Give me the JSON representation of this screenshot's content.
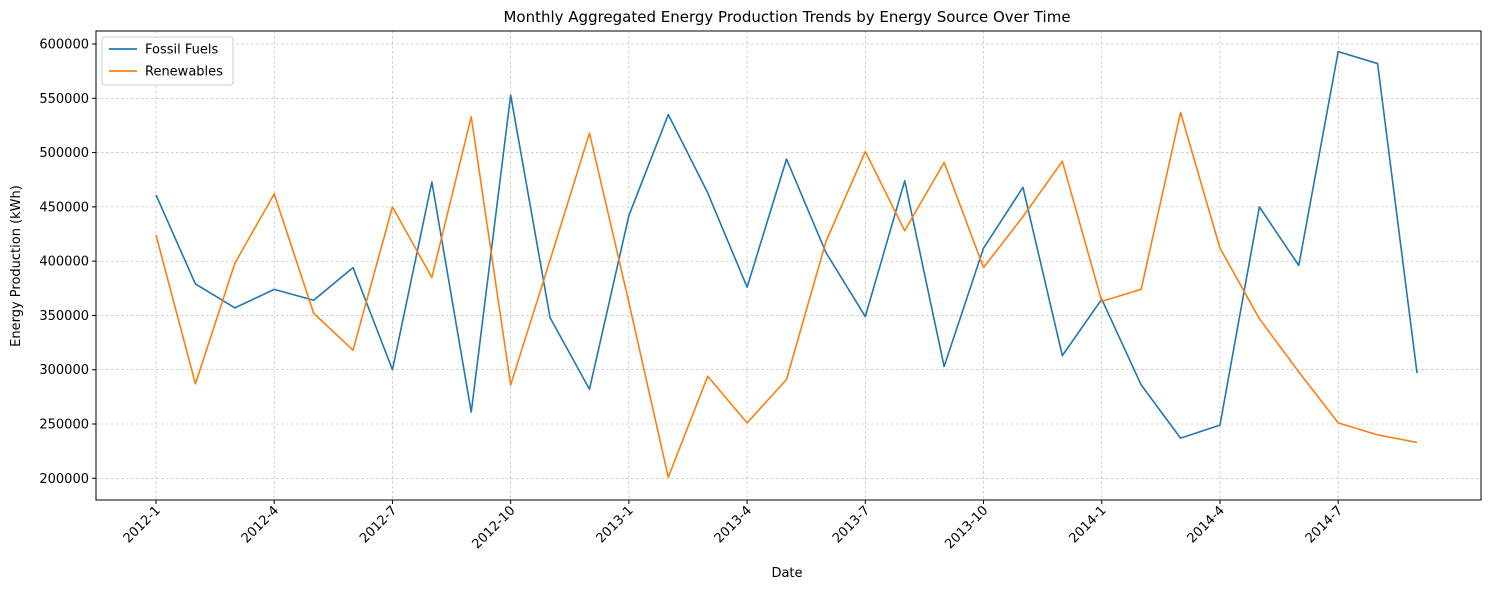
{
  "chart_data": {
    "type": "line",
    "title": "Monthly Aggregated Energy Production Trends by Energy Source Over Time",
    "xlabel": "Date",
    "ylabel": "Energy Production (kWh)",
    "x": [
      "2012-1",
      "2012-2",
      "2012-3",
      "2012-4",
      "2012-5",
      "2012-6",
      "2012-7",
      "2012-8",
      "2012-9",
      "2012-10",
      "2012-11",
      "2012-12",
      "2013-1",
      "2013-2",
      "2013-3",
      "2013-4",
      "2013-5",
      "2013-6",
      "2013-7",
      "2013-8",
      "2013-9",
      "2013-10",
      "2013-11",
      "2013-12",
      "2014-1",
      "2014-2",
      "2014-3",
      "2014-4",
      "2014-5",
      "2014-6",
      "2014-7",
      "2014-8",
      "2014-9"
    ],
    "xticks": [
      "2012-1",
      "2012-4",
      "2012-7",
      "2012-10",
      "2013-1",
      "2013-4",
      "2013-7",
      "2013-10",
      "2014-1",
      "2014-4",
      "2014-7"
    ],
    "yticks": [
      200000,
      250000,
      300000,
      350000,
      400000,
      450000,
      500000,
      550000,
      600000
    ],
    "ylim": [
      180000,
      612000
    ],
    "grid": true,
    "legend_position": "top-left",
    "series": [
      {
        "name": "Fossil Fuels",
        "color": "#1f77b4",
        "values": [
          461000,
          379000,
          357000,
          374000,
          364000,
          394000,
          300000,
          473000,
          261000,
          553000,
          348000,
          282000,
          442000,
          535000,
          463000,
          376000,
          494000,
          408000,
          349000,
          474000,
          303000,
          412000,
          468000,
          313000,
          365000,
          286000,
          237000,
          249000,
          450000,
          396000,
          593000,
          582000,
          297000
        ]
      },
      {
        "name": "Renewables",
        "color": "#ff7f0e",
        "values": [
          424000,
          287000,
          398000,
          462000,
          352000,
          318000,
          450000,
          385000,
          533000,
          286000,
          401000,
          518000,
          362000,
          201000,
          294000,
          251000,
          291000,
          418000,
          501000,
          428000,
          491000,
          394000,
          441000,
          492000,
          363000,
          374000,
          537000,
          412000,
          347000,
          298000,
          251000,
          240000,
          233000
        ]
      }
    ]
  }
}
